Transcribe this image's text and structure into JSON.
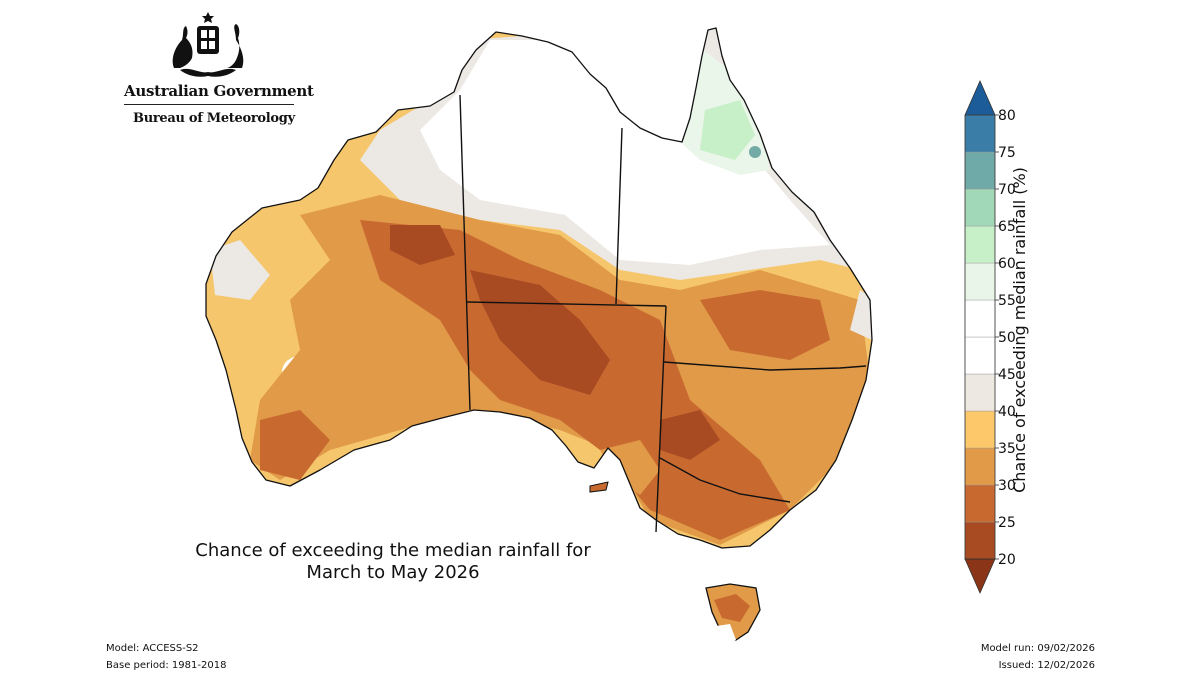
{
  "header": {
    "government": "Australian Government",
    "agency": "Bureau of Meteorology"
  },
  "map": {
    "title_line1": "Chance of exceeding the median rainfall for",
    "title_line2": "March to May 2026",
    "regions": [
      {
        "name": "Cape York / far north Queensland",
        "category": "55-60"
      },
      {
        "name": "Northern Territory north",
        "category": "45-50"
      },
      {
        "name": "Kimberley coast",
        "category": "40-45"
      },
      {
        "name": "Pilbara / Gascoyne",
        "category": "35-40"
      },
      {
        "name": "Central deserts",
        "category": "25-30"
      },
      {
        "name": "South Australia",
        "category": "20-25"
      },
      {
        "name": "New South Wales interior",
        "category": "25-30"
      },
      {
        "name": "Victoria",
        "category": "25-30"
      },
      {
        "name": "Southwest Western Australia",
        "category": "25-30"
      },
      {
        "name": "Tasmania",
        "category": "30-35"
      }
    ]
  },
  "legend": {
    "label": "Chance of exceeding median rainfall (%)",
    "ticks": [
      "20",
      "25",
      "30",
      "35",
      "40",
      "45",
      "50",
      "55",
      "60",
      "65",
      "70",
      "75",
      "80"
    ],
    "colors": [
      "#a84a22",
      "#c86a30",
      "#e09a48",
      "#fcc86a",
      "#eee8e2",
      "#ffffff",
      "#ffffff",
      "#e8f5e8",
      "#c8f0c8",
      "#a0d8b8",
      "#70aaa8",
      "#3a7ea8"
    ],
    "under_color": "#8a3418",
    "over_color": "#1c5c98"
  },
  "footer": {
    "model": "Model: ACCESS-S2",
    "base_period": "Base period: 1981-2018",
    "model_run": "Model run: 09/02/2026",
    "issued": "Issued: 12/02/2026"
  }
}
